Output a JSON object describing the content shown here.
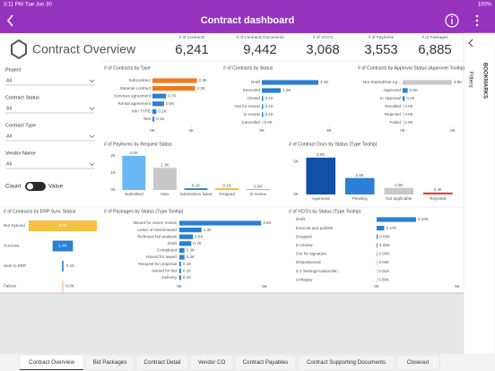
{
  "status_bar": {
    "time": "3:11 PM",
    "date": "Tue Jun 30",
    "battery": "100%"
  },
  "header": {
    "title": "Contract dashboard"
  },
  "overview": {
    "title": "Contract Overview"
  },
  "kpis": [
    {
      "label": "# of Contracts",
      "value": "6,241"
    },
    {
      "label": "# of Contracts Documents",
      "value": "9,442"
    },
    {
      "label": "# of VCO's",
      "value": "3,068"
    },
    {
      "label": "# of Payforms",
      "value": "3,553"
    },
    {
      "label": "# of Packages",
      "value": "6,885"
    }
  ],
  "filters": [
    {
      "label": "Project",
      "value": "All"
    },
    {
      "label": "Contract Status",
      "value": "All"
    },
    {
      "label": "Contract Type",
      "value": "All"
    },
    {
      "label": "Vendor Name",
      "value": "All"
    }
  ],
  "toggle": {
    "left": "Count",
    "right": "Value"
  },
  "charts": [
    {
      "type": "hbar",
      "title": "# of Contracts by Type",
      "categories": [
        "Subcontract",
        "Material contract",
        "Services agreement",
        "Rental agreement",
        "Kiln TYPE",
        "Test"
      ],
      "values": [
        2.3,
        2.2,
        0.7,
        0.6,
        0.2,
        0.1
      ],
      "value_labels": [
        "2.3K",
        "2.2K",
        "0.7K",
        "0.6K",
        "0.2K",
        "0.1K"
      ],
      "colors": [
        "#f07a1f",
        "#f07a1f",
        "#2b7fd4",
        "#2b7fd4",
        "#2b7fd4",
        "#2b7fd4"
      ],
      "xlim": [
        0,
        2.5
      ],
      "xticks": [
        {
          "value": 0,
          "label": "0K"
        },
        {
          "value": 2,
          "label": "2K"
        }
      ]
    },
    {
      "type": "hbar",
      "title": "# of Contracts by Status",
      "categories": [
        "Draft",
        "Executed",
        "Closed",
        "Out for review",
        "In review",
        "Cancelled"
      ],
      "values": [
        4.2,
        1.4,
        0.1,
        0.1,
        0.1,
        0.02
      ],
      "value_labels": [
        "4.2K",
        "1.4K",
        "0.1K",
        "0.1K",
        "0.1K",
        "0.0K"
      ],
      "colors": [
        "#2b7fd4",
        "#2b7fd4",
        "#2b7fd4",
        "#2b7fd4",
        "#2b7fd4",
        "#2b7fd4"
      ],
      "xlim": [
        0,
        5
      ],
      "xticks": [
        {
          "value": 0,
          "label": "0K"
        },
        {
          "value": 5,
          "label": "5K"
        }
      ]
    },
    {
      "type": "hbar",
      "title": "# of Contracts by Approval Status (Approver Tooltip)",
      "categories": [
        "Not Started/Not Ap...",
        "Approved",
        "In Approval",
        "Recalled",
        "Rejected",
        "Failed"
      ],
      "values": [
        4.9,
        0.5,
        0.2,
        0.02,
        0.02,
        0.01
      ],
      "value_labels": [
        "4.9K",
        "0.5K",
        "0.2K",
        "0.0K",
        "0.0K",
        "0.0K"
      ],
      "colors": [
        "#c8c8c8",
        "#2b7fd4",
        "#2b7fd4",
        "#2b7fd4",
        "#2b7fd4",
        "#2b7fd4"
      ],
      "xlim": [
        0,
        5
      ],
      "xticks": [
        {
          "value": 0,
          "label": "0K"
        },
        {
          "value": 5,
          "label": "5K"
        }
      ]
    },
    {
      "type": "bar",
      "title": "# of Payforms by Request Status",
      "categories": [
        "Submitted",
        "New",
        "Submission failed",
        "Dropped",
        "In review"
      ],
      "values": [
        2.0,
        1.3,
        0.1,
        0.1,
        0.04
      ],
      "value_labels": [
        "2.0K",
        "1.3K",
        "0.1K",
        "0.1K",
        "0.0K"
      ],
      "colors": [
        "#6ab7f5",
        "#c8c8c8",
        "#2b7fd4",
        "#f2c12e",
        "#f07a1f"
      ],
      "ylim": [
        0,
        2.1
      ],
      "yticks": [
        {
          "value": 0,
          "label": "0K"
        },
        {
          "value": 1,
          "label": "1K"
        },
        {
          "value": 2,
          "label": "2K"
        }
      ]
    },
    {
      "type": "bar",
      "title": "# of Contract Docs by Status (Type Tooltip)",
      "categories": [
        "Approved",
        "Pending",
        "Not applicable",
        "Rejected"
      ],
      "values": [
        5.6,
        2.5,
        1.0,
        0.3
      ],
      "value_labels": [
        "5.6K",
        "2.5K",
        "1.0K",
        "0.3K"
      ],
      "colors": [
        "#1050a8",
        "#2b7fd4",
        "#c8c8c8",
        "#e0443c"
      ],
      "ylim": [
        0,
        6.4
      ],
      "yticks": [
        {
          "value": 0,
          "label": "0K"
        },
        {
          "value": 5,
          "label": "5K"
        }
      ]
    },
    {
      "type": "funnel",
      "title": "# of Contracts by ERP Sync Status",
      "categories": [
        "Not Synced",
        "Success",
        "Sent to ERP",
        "Failure"
      ],
      "values": [
        4.7,
        1.4,
        0.1,
        0.04
      ],
      "value_labels": [
        "4.7K",
        "1.4K",
        "0.1K",
        "0.0K"
      ],
      "colors": [
        "#f5c242",
        "#2b7fd4",
        "#2b7fd4",
        "#f07a1f"
      ]
    },
    {
      "type": "hbar",
      "title": "# of Packages by Status (Type Tooltip)",
      "categories": [
        "Issued for owner review",
        "Letter of intent/Award",
        "Technical bid analysis",
        "Draft",
        "Completed",
        "Issued for award",
        "Request for proposal",
        "Issued for bid",
        "Delivery"
      ],
      "values": [
        4.8,
        1.3,
        0.8,
        0.7,
        0.3,
        0.3,
        0.1,
        0.1,
        0.1
      ],
      "value_labels": [
        "4.8K",
        "1.3K",
        "0.8K",
        "0.7K",
        "0.3K",
        "0.3K",
        "0.1K",
        "0.1K",
        "0.1K"
      ],
      "colors": [
        "#2b7fd4",
        "#2b7fd4",
        "#2b7fd4",
        "#2b7fd4",
        "#2b7fd4",
        "#2b7fd4",
        "#2b7fd4",
        "#2b7fd4",
        "#2b7fd4"
      ],
      "xlim": [
        0,
        5
      ],
      "xticks": [
        {
          "value": 0,
          "label": "0K"
        },
        {
          "value": 5,
          "label": "5K"
        }
      ]
    },
    {
      "type": "hbar",
      "title": "# of VCO's by Status (Type Tooltip)",
      "categories": [
        "Draft",
        "Execute and publish",
        "Dropped",
        "In review",
        "Out for signature",
        "Dispositioned",
        "0.1 Testing/Aviation/W...",
        "Unhappy"
      ],
      "values": [
        2.44,
        0.47,
        0.06,
        0.05,
        0.03,
        0.02,
        0.01,
        0.0
      ],
      "value_labels": [
        "2.44K",
        "0.47K",
        "0.06K",
        "0.05K",
        "0.03K",
        "0.02K",
        "0.01K",
        "0.00K"
      ],
      "colors": [
        "#2b7fd4",
        "#2b7fd4",
        "#2b7fd4",
        "#2b7fd4",
        "#2b7fd4",
        "#2b7fd4",
        "#2b7fd4",
        "#2b7fd4"
      ],
      "xlim": [
        0,
        5
      ],
      "xticks": [
        {
          "value": 0,
          "label": "0K"
        },
        {
          "value": 5,
          "label": "5K"
        }
      ]
    }
  ],
  "side_panel": {
    "filters": "Filters",
    "bookmarks": "BOOKMARKS"
  },
  "tabs": [
    "Contract Overview",
    "Bid Packages",
    "Contract Detail",
    "Vendor CO",
    "Contract Payables",
    "Contract Supporting Documents",
    "Closeout"
  ]
}
